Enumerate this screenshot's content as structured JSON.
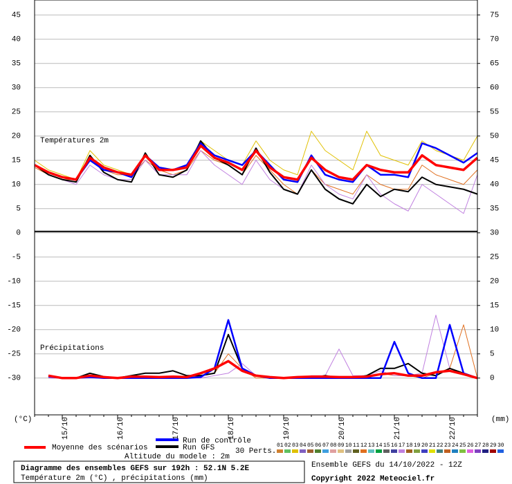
{
  "chart_data": {
    "type": "line",
    "panel_labels": [
      "Températures 2m",
      "Précipitations"
    ],
    "ylabel": "(°C)",
    "y2label": "(mm)",
    "categories": [
      null,
      null,
      "15/10",
      null,
      null,
      null,
      "16/10",
      null,
      null,
      null,
      "17/10",
      null,
      null,
      null,
      "18/10",
      null,
      null,
      null,
      "19/10",
      null,
      null,
      null,
      "20/10",
      null,
      null,
      null,
      "21/10",
      null,
      null,
      null,
      "22/10",
      null,
      null
    ],
    "ylim": [
      -37.6,
      48.1
    ],
    "yticks": [
      45,
      40,
      35,
      30,
      25,
      20,
      15,
      10,
      5,
      0,
      -5,
      -10,
      -15,
      -20,
      -25,
      -30
    ],
    "y2lim": [
      -7.6,
      78.1
    ],
    "y2ticks": [
      75,
      70,
      65,
      60,
      55,
      50,
      45,
      40,
      35,
      30,
      25,
      20,
      15,
      10,
      5,
      0
    ],
    "grid": true,
    "series": [
      {
        "name": "Run GFS",
        "color": "#000000",
        "values": [
          14,
          12,
          11,
          10.5,
          16,
          12.5,
          11,
          10.5,
          16.5,
          12,
          11.5,
          13,
          19,
          15.5,
          14,
          12,
          17.5,
          12.5,
          9,
          8,
          13,
          9,
          7,
          6,
          10,
          7.5,
          9,
          8.5,
          11.5,
          10,
          9.5,
          9,
          8
        ],
        "precip": [
          null,
          0.5,
          0,
          0,
          1,
          0.3,
          0,
          0.5,
          1,
          1,
          1.5,
          0.5,
          0.5,
          1,
          9,
          2,
          0.5,
          0,
          0,
          0.2,
          0,
          0.5,
          0,
          0,
          0.5,
          2,
          2,
          3,
          1,
          0.5,
          2,
          1,
          0
        ]
      },
      {
        "name": "Run de contrôle",
        "color": "#0000ff",
        "values": [
          14,
          12.5,
          11.5,
          11,
          15,
          13,
          12.5,
          11.5,
          16,
          13.5,
          13,
          14,
          18.5,
          16,
          15,
          14,
          17,
          14,
          11,
          10.5,
          16,
          12,
          11,
          10.5,
          14,
          12,
          12,
          11.5,
          18.5,
          17.5,
          16,
          14.5,
          16.5
        ],
        "precip": [
          null,
          0.3,
          0,
          0,
          0.2,
          0,
          0,
          0,
          0,
          0,
          0,
          0,
          0.2,
          2,
          12,
          2,
          0.5,
          0,
          0,
          0,
          0,
          0,
          0,
          0,
          0,
          0,
          7.5,
          1,
          0,
          0,
          11,
          1,
          0
        ]
      },
      {
        "name": "Moyenne des scénarios",
        "color": "#ff0000",
        "values": [
          14,
          12.5,
          11.5,
          11,
          15.5,
          13.5,
          12.5,
          12,
          16,
          13,
          13,
          13.5,
          18,
          15.5,
          14.5,
          13,
          17,
          13.5,
          11.5,
          11,
          15.5,
          13,
          11.5,
          11,
          14,
          13,
          12.5,
          12.5,
          16,
          14,
          13.5,
          13,
          15.5
        ],
        "precip": [
          null,
          0.5,
          0,
          0,
          0.5,
          0.2,
          0,
          0.3,
          0.3,
          0.2,
          0.3,
          0.2,
          1,
          2,
          3.5,
          1.5,
          0.5,
          0.2,
          0,
          0.2,
          0.3,
          0.3,
          0.2,
          0.2,
          0.3,
          0.8,
          1,
          0.5,
          0.5,
          1.2,
          1.5,
          0.8,
          0
        ]
      }
    ],
    "perturbations_label": "30 Perts.",
    "perturbations": [
      {
        "name": "01",
        "color": "#d08030"
      },
      {
        "name": "02",
        "color": "#60c060"
      },
      {
        "name": "03",
        "color": "#e0c000",
        "values": [
          15,
          13,
          12,
          11,
          17,
          14,
          13,
          12,
          16,
          13,
          13,
          14,
          19,
          17,
          15,
          14,
          19,
          15,
          13,
          12,
          21,
          17,
          15,
          13,
          21,
          16,
          15,
          14,
          19,
          17,
          16,
          15,
          20
        ]
      },
      {
        "name": "04",
        "color": "#8060c0"
      },
      {
        "name": "05",
        "color": "#a06030"
      },
      {
        "name": "06",
        "color": "#508030"
      },
      {
        "name": "07",
        "color": "#40a0e0"
      },
      {
        "name": "08",
        "color": "#e0a0a0"
      },
      {
        "name": "09",
        "color": "#e0c080"
      },
      {
        "name": "10",
        "color": "#a0a0a0"
      },
      {
        "name": "11",
        "color": "#606020"
      },
      {
        "name": "12",
        "color": "#e07020",
        "values": [
          13.5,
          12,
          11,
          11,
          16,
          13,
          12,
          12,
          15,
          13,
          12,
          13,
          17,
          15,
          14,
          12,
          16,
          13,
          10,
          8,
          13,
          10,
          9,
          8,
          12,
          10,
          9,
          9,
          14,
          12,
          11,
          10,
          13
        ],
        "precip": [
          null,
          0,
          0,
          0,
          0,
          0,
          0,
          0,
          0,
          0,
          0,
          0,
          0.5,
          1,
          5,
          2,
          0,
          0,
          0,
          0,
          0,
          0,
          0,
          0,
          0,
          1,
          0.5,
          0.5,
          0,
          1,
          2,
          11,
          0
        ]
      },
      {
        "name": "13",
        "color": "#60c0c0"
      },
      {
        "name": "14",
        "color": "#00a040"
      },
      {
        "name": "15",
        "color": "#606060"
      },
      {
        "name": "16",
        "color": "#4040a0"
      },
      {
        "name": "17",
        "color": "#c080e0",
        "values": [
          14,
          12,
          11,
          10,
          14,
          12,
          11,
          11,
          15,
          12,
          12,
          12,
          17,
          14,
          12,
          10,
          15,
          11,
          9,
          8,
          14,
          10,
          8,
          7,
          12,
          8,
          6,
          4.5,
          10,
          8,
          6,
          4,
          12
        ],
        "precip": [
          null,
          0,
          0,
          0,
          0,
          0,
          0,
          0,
          0,
          0,
          0,
          0,
          0,
          0.5,
          1,
          3,
          0.5,
          0,
          0,
          0,
          0.5,
          0.5,
          6,
          0.5,
          0.5,
          1.5,
          0.5,
          0.5,
          1,
          13,
          2,
          1,
          0
        ]
      },
      {
        "name": "18",
        "color": "#a06020"
      },
      {
        "name": "19",
        "color": "#80a040"
      },
      {
        "name": "20",
        "color": "#4040c0"
      },
      {
        "name": "21",
        "color": "#e0e000"
      },
      {
        "name": "22",
        "color": "#408080"
      },
      {
        "name": "23",
        "color": "#c06020"
      },
      {
        "name": "24",
        "color": "#2080c0"
      },
      {
        "name": "25",
        "color": "#80c040"
      },
      {
        "name": "26",
        "color": "#e060e0"
      },
      {
        "name": "27",
        "color": "#8040c0"
      },
      {
        "name": "28",
        "color": "#202080"
      },
      {
        "name": "29",
        "color": "#a00000"
      },
      {
        "name": "30",
        "color": "#2060e0"
      }
    ],
    "altitude": "Altitude du modele : 2m",
    "title": "Diagramme des ensembles GEFS sur 192h : 52.1N 5.2E",
    "subtitle": "Température 2m (°C) , précipitations (mm)",
    "run_info": "Ensemble GEFS du 14/10/2022 - 12Z",
    "copyright": "Copyright 2022 Meteociel.fr"
  }
}
